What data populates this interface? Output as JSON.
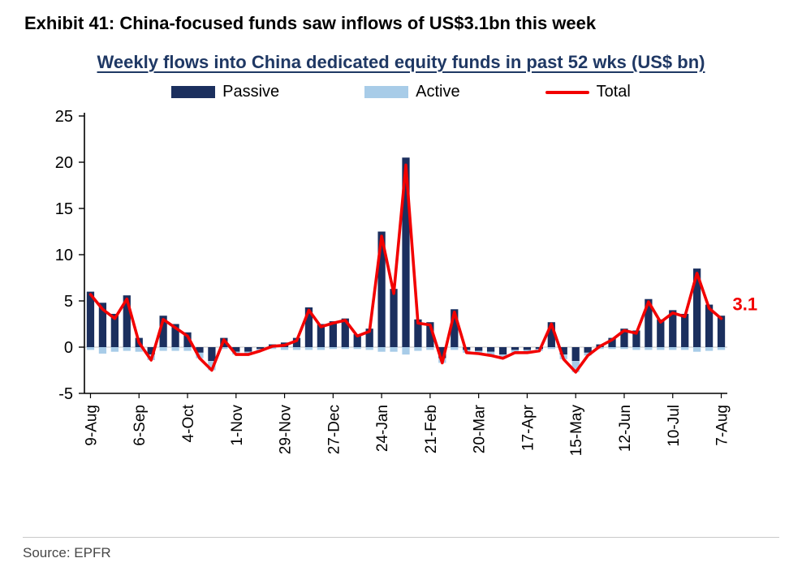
{
  "exhibit": {
    "title": "Exhibit 41: China-focused funds saw inflows of US$3.1bn this week"
  },
  "chart": {
    "title": "Weekly flows into China dedicated equity funds in past 52 wks (US$ bn)",
    "legend": [
      {
        "label": "Passive",
        "color": "#1B2F5E",
        "swatch": "bar"
      },
      {
        "label": "Active",
        "color": "#A8CCE8",
        "swatch": "bar"
      },
      {
        "label": "Total",
        "color": "#F20000",
        "swatch": "line"
      }
    ]
  },
  "source": {
    "label": "Source: EPFR"
  },
  "chart_data": {
    "type": "bar",
    "title": "Weekly flows into China dedicated equity funds in past 52 wks (US$ bn)",
    "xlabel": "",
    "ylabel": "US$ bn",
    "ylim": [
      -5,
      25
    ],
    "yticks": [
      -5,
      0,
      5,
      10,
      15,
      20,
      25
    ],
    "grid": false,
    "legend_position": "top",
    "n_points": 53,
    "x_tick_positions": [
      0,
      4,
      8,
      12,
      16,
      20,
      24,
      28,
      32,
      36,
      40,
      44,
      48,
      52
    ],
    "x_tick_labels": [
      "9-Aug",
      "6-Sep",
      "4-Oct",
      "1-Nov",
      "29-Nov",
      "27-Dec",
      "24-Jan",
      "21-Feb",
      "20-Mar",
      "17-Apr",
      "15-May",
      "12-Jun",
      "10-Jul",
      "7-Aug"
    ],
    "series": [
      {
        "name": "Passive",
        "type": "bar",
        "color": "#1B2F5E",
        "values": [
          6.0,
          4.8,
          3.6,
          5.6,
          1.0,
          -0.8,
          3.4,
          2.5,
          1.6,
          -0.6,
          -1.5,
          1.0,
          -0.5,
          -0.5,
          -0.2,
          0.3,
          0.5,
          1.0,
          4.3,
          2.5,
          2.8,
          3.1,
          1.4,
          2.0,
          12.5,
          6.3,
          20.5,
          3.0,
          2.7,
          -1.2,
          4.1,
          -0.3,
          -0.4,
          -0.5,
          -0.8,
          -0.3,
          -0.3,
          -0.2,
          2.7,
          -0.8,
          -1.5,
          -0.6,
          0.3,
          1.0,
          2.0,
          1.8,
          5.2,
          3.0,
          4.0,
          3.6,
          8.5,
          4.6,
          3.4
        ]
      },
      {
        "name": "Active",
        "type": "bar",
        "color": "#A8CCE8",
        "values": [
          -0.3,
          -0.7,
          -0.5,
          -0.4,
          -0.5,
          -0.6,
          -0.4,
          -0.4,
          -0.4,
          -0.6,
          -1.0,
          -0.2,
          -0.3,
          -0.3,
          -0.2,
          -0.2,
          -0.3,
          -0.3,
          -0.3,
          -0.3,
          -0.2,
          -0.2,
          -0.2,
          -0.3,
          -0.5,
          -0.5,
          -0.8,
          -0.4,
          -0.3,
          -0.5,
          -0.3,
          -0.3,
          -0.3,
          -0.4,
          -0.4,
          -0.3,
          -0.3,
          -0.2,
          -0.2,
          -0.5,
          -1.2,
          -0.3,
          -0.2,
          -0.2,
          -0.2,
          -0.3,
          -0.3,
          -0.3,
          -0.3,
          -0.3,
          -0.5,
          -0.4,
          -0.3
        ]
      },
      {
        "name": "Total",
        "type": "line",
        "color": "#F20000",
        "values": [
          5.7,
          4.1,
          3.1,
          5.2,
          0.5,
          -1.4,
          3.0,
          2.1,
          1.2,
          -1.2,
          -2.5,
          0.8,
          -0.8,
          -0.8,
          -0.4,
          0.1,
          0.2,
          0.7,
          4.0,
          2.2,
          2.6,
          2.9,
          1.2,
          1.7,
          12.0,
          5.8,
          19.7,
          2.6,
          2.4,
          -1.7,
          3.8,
          -0.6,
          -0.7,
          -0.9,
          -1.2,
          -0.6,
          -0.6,
          -0.4,
          2.5,
          -1.3,
          -2.7,
          -0.9,
          0.1,
          0.8,
          1.8,
          1.5,
          4.9,
          2.7,
          3.7,
          3.3,
          8.0,
          4.2,
          3.1
        ]
      }
    ],
    "annotation": {
      "text": "3.1",
      "color": "#F20000",
      "index": 52
    }
  }
}
